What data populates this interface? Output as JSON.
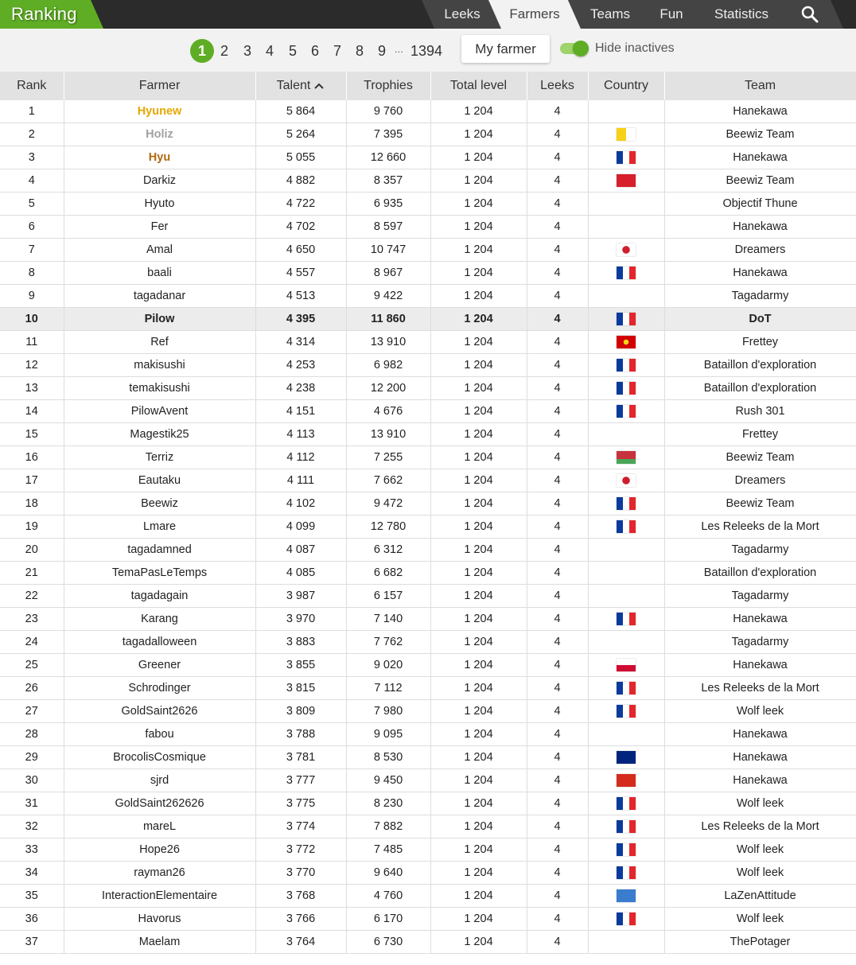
{
  "app": {
    "title": "Ranking",
    "nav": [
      {
        "label": "Leeks",
        "active": false
      },
      {
        "label": "Farmers",
        "active": true
      },
      {
        "label": "Teams",
        "active": false
      },
      {
        "label": "Fun",
        "active": false
      },
      {
        "label": "Statistics",
        "active": false
      }
    ],
    "search_icon": "search-icon"
  },
  "toolbar": {
    "pages": [
      "1",
      "2",
      "3",
      "4",
      "5",
      "6",
      "7",
      "8",
      "9"
    ],
    "current_page": "1",
    "ellipsis": "...",
    "last_page": "1394",
    "my_farmer_label": "My farmer",
    "hide_inactives_label": "Hide inactives",
    "hide_inactives_on": true
  },
  "colors": {
    "accent": "#5fad24",
    "header": "#2b2b2b",
    "gold": "#e6a700",
    "silver": "#a0a0a0",
    "bronze": "#b06a10"
  },
  "table": {
    "columns": [
      "Rank",
      "Farmer",
      "Talent",
      "Trophies",
      "Total level",
      "Leeks",
      "Country",
      "Team"
    ],
    "sorted_by": "Talent",
    "rows": [
      {
        "rank": "1",
        "farmer": "Hyunew",
        "talent": "5 864",
        "trophies": "9 760",
        "total": "1 204",
        "leeks": "4",
        "country": "",
        "team": "Hanekawa"
      },
      {
        "rank": "2",
        "farmer": "Holiz",
        "talent": "5 264",
        "trophies": "7 395",
        "total": "1 204",
        "leeks": "4",
        "country": "va",
        "team": "Beewiz Team"
      },
      {
        "rank": "3",
        "farmer": "Hyu",
        "talent": "5 055",
        "trophies": "12 660",
        "total": "1 204",
        "leeks": "4",
        "country": "fr",
        "team": "Hanekawa"
      },
      {
        "rank": "4",
        "farmer": "Darkiz",
        "talent": "4 882",
        "trophies": "8 357",
        "total": "1 204",
        "leeks": "4",
        "country": "im",
        "team": "Beewiz Team"
      },
      {
        "rank": "5",
        "farmer": "Hyuto",
        "talent": "4 722",
        "trophies": "6 935",
        "total": "1 204",
        "leeks": "4",
        "country": "",
        "team": "Objectif Thune"
      },
      {
        "rank": "6",
        "farmer": "Fer",
        "talent": "4 702",
        "trophies": "8 597",
        "total": "1 204",
        "leeks": "4",
        "country": "",
        "team": "Hanekawa"
      },
      {
        "rank": "7",
        "farmer": "Amal",
        "talent": "4 650",
        "trophies": "10 747",
        "total": "1 204",
        "leeks": "4",
        "country": "jp",
        "team": "Dreamers"
      },
      {
        "rank": "8",
        "farmer": "baali",
        "talent": "4 557",
        "trophies": "8 967",
        "total": "1 204",
        "leeks": "4",
        "country": "fr",
        "team": "Hanekawa"
      },
      {
        "rank": "9",
        "farmer": "tagadanar",
        "talent": "4 513",
        "trophies": "9 422",
        "total": "1 204",
        "leeks": "4",
        "country": "",
        "team": "Tagadarmy"
      },
      {
        "rank": "10",
        "farmer": "Pilow",
        "talent": "4 395",
        "trophies": "11 860",
        "total": "1 204",
        "leeks": "4",
        "country": "fr",
        "team": "DoT",
        "me": true
      },
      {
        "rank": "11",
        "farmer": "Ref",
        "talent": "4 314",
        "trophies": "13 910",
        "total": "1 204",
        "leeks": "4",
        "country": "mk",
        "team": "Frettey"
      },
      {
        "rank": "12",
        "farmer": "makisushi",
        "talent": "4 253",
        "trophies": "6 982",
        "total": "1 204",
        "leeks": "4",
        "country": "fr",
        "team": "Bataillon d'exploration"
      },
      {
        "rank": "13",
        "farmer": "temakisushi",
        "talent": "4 238",
        "trophies": "12 200",
        "total": "1 204",
        "leeks": "4",
        "country": "fr",
        "team": "Bataillon d'exploration"
      },
      {
        "rank": "14",
        "farmer": "PilowAvent",
        "talent": "4 151",
        "trophies": "4 676",
        "total": "1 204",
        "leeks": "4",
        "country": "fr",
        "team": "Rush 301"
      },
      {
        "rank": "15",
        "farmer": "Magestik25",
        "talent": "4 113",
        "trophies": "13 910",
        "total": "1 204",
        "leeks": "4",
        "country": "",
        "team": "Frettey"
      },
      {
        "rank": "16",
        "farmer": "Terriz",
        "talent": "4 112",
        "trophies": "7 255",
        "total": "1 204",
        "leeks": "4",
        "country": "by",
        "team": "Beewiz Team"
      },
      {
        "rank": "17",
        "farmer": "Eautaku",
        "talent": "4 111",
        "trophies": "7 662",
        "total": "1 204",
        "leeks": "4",
        "country": "jp",
        "team": "Dreamers"
      },
      {
        "rank": "18",
        "farmer": "Beewiz",
        "talent": "4 102",
        "trophies": "9 472",
        "total": "1 204",
        "leeks": "4",
        "country": "fr",
        "team": "Beewiz Team"
      },
      {
        "rank": "19",
        "farmer": "Lmare",
        "talent": "4 099",
        "trophies": "12 780",
        "total": "1 204",
        "leeks": "4",
        "country": "fr",
        "team": "Les Releeks de la Mort"
      },
      {
        "rank": "20",
        "farmer": "tagadamned",
        "talent": "4 087",
        "trophies": "6 312",
        "total": "1 204",
        "leeks": "4",
        "country": "",
        "team": "Tagadarmy"
      },
      {
        "rank": "21",
        "farmer": "TemaPasLeTemps",
        "talent": "4 085",
        "trophies": "6 682",
        "total": "1 204",
        "leeks": "4",
        "country": "",
        "team": "Bataillon d'exploration"
      },
      {
        "rank": "22",
        "farmer": "tagadagain",
        "talent": "3 987",
        "trophies": "6 157",
        "total": "1 204",
        "leeks": "4",
        "country": "",
        "team": "Tagadarmy"
      },
      {
        "rank": "23",
        "farmer": "Karang",
        "talent": "3 970",
        "trophies": "7 140",
        "total": "1 204",
        "leeks": "4",
        "country": "fr",
        "team": "Hanekawa"
      },
      {
        "rank": "24",
        "farmer": "tagadalloween",
        "talent": "3 883",
        "trophies": "7 762",
        "total": "1 204",
        "leeks": "4",
        "country": "",
        "team": "Tagadarmy"
      },
      {
        "rank": "25",
        "farmer": "Greener",
        "talent": "3 855",
        "trophies": "9 020",
        "total": "1 204",
        "leeks": "4",
        "country": "gl",
        "team": "Hanekawa"
      },
      {
        "rank": "26",
        "farmer": "Schrodinger",
        "talent": "3 815",
        "trophies": "7 112",
        "total": "1 204",
        "leeks": "4",
        "country": "fr",
        "team": "Les Releeks de la Mort"
      },
      {
        "rank": "27",
        "farmer": "GoldSaint2626",
        "talent": "3 809",
        "trophies": "7 980",
        "total": "1 204",
        "leeks": "4",
        "country": "fr",
        "team": "Wolf leek"
      },
      {
        "rank": "28",
        "farmer": "fabou",
        "talent": "3 788",
        "trophies": "9 095",
        "total": "1 204",
        "leeks": "4",
        "country": "",
        "team": "Hanekawa"
      },
      {
        "rank": "29",
        "farmer": "BrocolisCosmique",
        "talent": "3 781",
        "trophies": "8 530",
        "total": "1 204",
        "leeks": "4",
        "country": "nz",
        "team": "Hanekawa"
      },
      {
        "rank": "30",
        "farmer": "sjrd",
        "talent": "3 777",
        "trophies": "9 450",
        "total": "1 204",
        "leeks": "4",
        "country": "ch",
        "team": "Hanekawa"
      },
      {
        "rank": "31",
        "farmer": "GoldSaint262626",
        "talent": "3 775",
        "trophies": "8 230",
        "total": "1 204",
        "leeks": "4",
        "country": "fr",
        "team": "Wolf leek"
      },
      {
        "rank": "32",
        "farmer": "mareL",
        "talent": "3 774",
        "trophies": "7 882",
        "total": "1 204",
        "leeks": "4",
        "country": "fr",
        "team": "Les Releeks de la Mort"
      },
      {
        "rank": "33",
        "farmer": "Hope26",
        "talent": "3 772",
        "trophies": "7 485",
        "total": "1 204",
        "leeks": "4",
        "country": "fr",
        "team": "Wolf leek"
      },
      {
        "rank": "34",
        "farmer": "rayman26",
        "talent": "3 770",
        "trophies": "9 640",
        "total": "1 204",
        "leeks": "4",
        "country": "fr",
        "team": "Wolf leek"
      },
      {
        "rank": "35",
        "farmer": "InteractionElementaire",
        "talent": "3 768",
        "trophies": "4 760",
        "total": "1 204",
        "leeks": "4",
        "country": "aq",
        "team": "LaZenAttitude"
      },
      {
        "rank": "36",
        "farmer": "Havorus",
        "talent": "3 766",
        "trophies": "6 170",
        "total": "1 204",
        "leeks": "4",
        "country": "fr",
        "team": "Wolf leek"
      },
      {
        "rank": "37",
        "farmer": "Maelam",
        "talent": "3 764",
        "trophies": "6 730",
        "total": "1 204",
        "leeks": "4",
        "country": "",
        "team": "ThePotager"
      }
    ]
  }
}
